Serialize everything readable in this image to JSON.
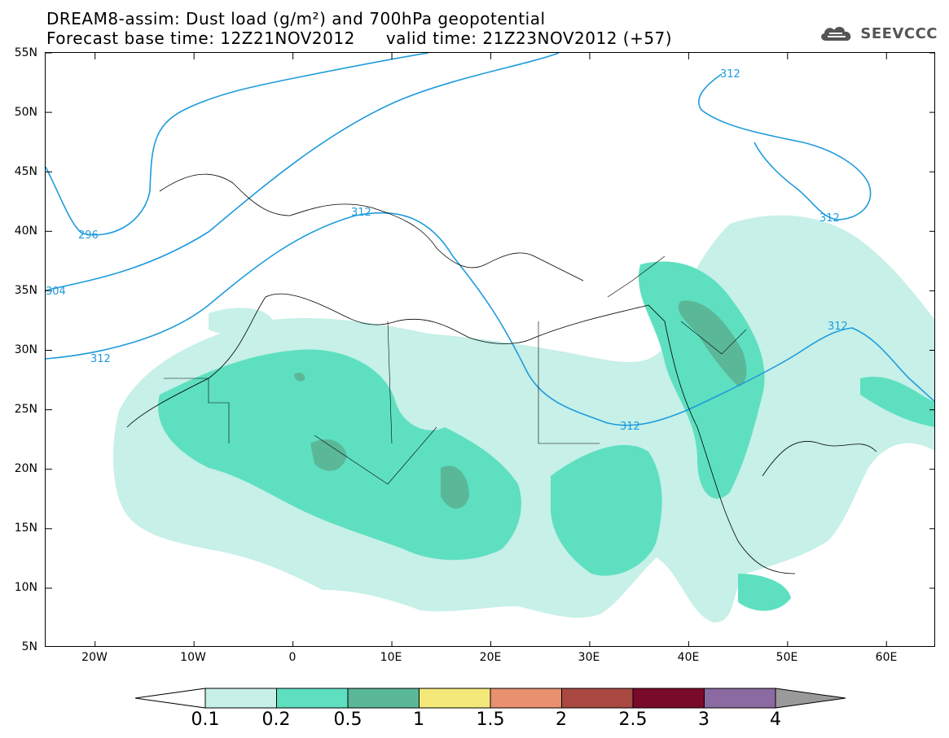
{
  "title": {
    "line1": "DREAM8-assim: Dust load (g/m²) and 700hPa geopotential",
    "line2_base": "Forecast base time: 12Z21NOV2012",
    "line2_valid": "valid time: 21Z23NOV2012 (+57)"
  },
  "logo": {
    "text": "SEEVCCC",
    "icon": "cloud-icon"
  },
  "map": {
    "lon_range": [
      -25,
      65
    ],
    "lat_range": [
      5,
      55
    ],
    "lat_labels": [
      "55N",
      "50N",
      "45N",
      "40N",
      "35N",
      "30N",
      "25N",
      "20N",
      "15N",
      "10N",
      "5N"
    ],
    "lon_labels": [
      "20W",
      "10W",
      "0",
      "10E",
      "20E",
      "30E",
      "40E",
      "50E",
      "60E"
    ],
    "contour_labels": [
      "296",
      "304",
      "312",
      "312",
      "312",
      "312",
      "312",
      "312"
    ]
  },
  "colorbar": {
    "labels": [
      "0.1",
      "0.2",
      "0.5",
      "1",
      "1.5",
      "2",
      "2.5",
      "3",
      "4"
    ],
    "colors": [
      "#ffffff",
      "#c6f0e8",
      "#5ee0c0",
      "#5ab898",
      "#f5e87a",
      "#e89070",
      "#a84840",
      "#7a0a2a",
      "#8a6aa0",
      "#9a9a9a"
    ]
  },
  "colors": {
    "contour": "#1e9bdc",
    "dust_low": "#c6f0e8",
    "dust_mid": "#5ee0c0",
    "dust_high": "#5ab898"
  }
}
